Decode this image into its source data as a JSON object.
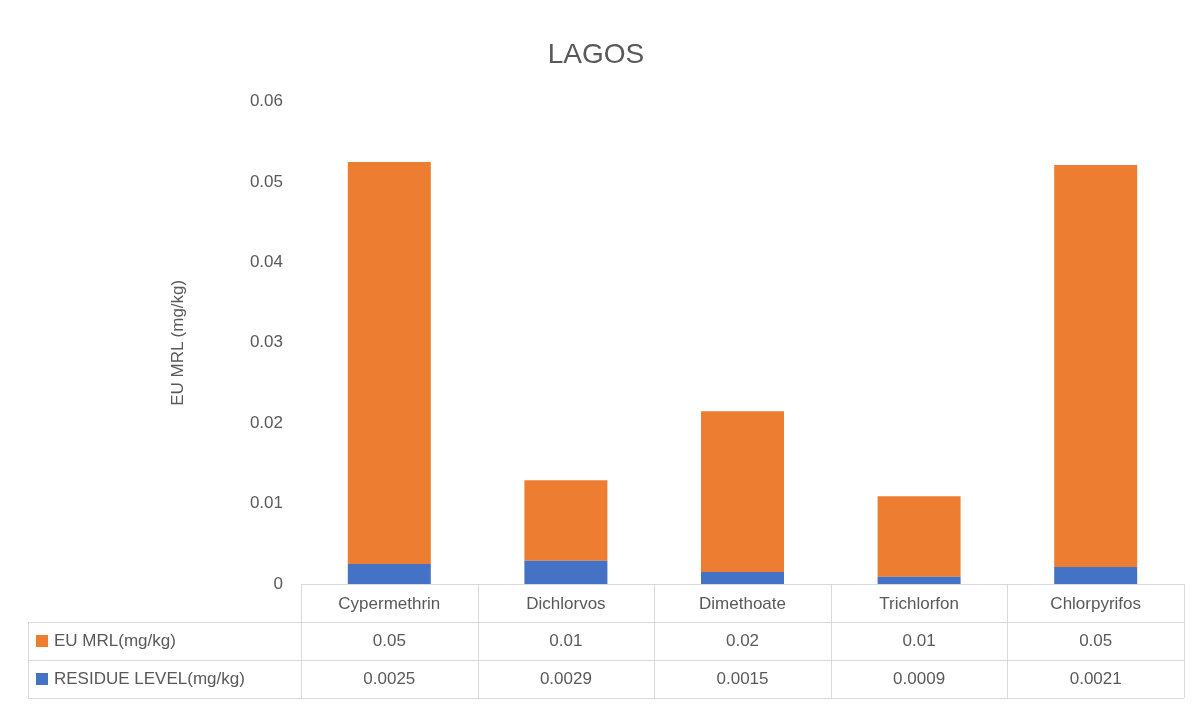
{
  "chart_data": {
    "type": "bar",
    "title": "LAGOS",
    "ylabel": "EU MRL (mg/kg)",
    "categories": [
      "Cypermethrin",
      "Dichlorvos",
      "Dimethoate",
      "Trichlorfon",
      "Chlorpyrifos"
    ],
    "stacked": true,
    "series": [
      {
        "name": "RESIDUE LEVEL(mg/kg)",
        "color": "#4472c4",
        "values": [
          0.0025,
          0.0029,
          0.0015,
          0.0009,
          0.0021
        ]
      },
      {
        "name": "EU MRL(mg/kg)",
        "color": "#ed7d31",
        "values": [
          0.05,
          0.01,
          0.02,
          0.01,
          0.05
        ]
      }
    ],
    "ylim": [
      0,
      0.06
    ],
    "yticks": [
      0,
      0.01,
      0.02,
      0.03,
      0.04,
      0.05,
      0.06
    ],
    "grid": false,
    "legend": "bottom",
    "data_labels": true
  }
}
